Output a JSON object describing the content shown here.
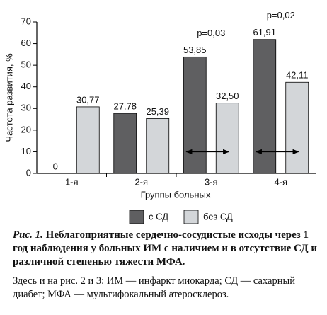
{
  "chart_data": {
    "type": "bar",
    "x_label": "Группы больных",
    "y_label": "Частота развития, %",
    "categories": [
      "1-я",
      "2-я",
      "3-я",
      "4-я"
    ],
    "series": [
      {
        "name": "с СД",
        "color": "#5f5f61",
        "values": [
          0,
          27.78,
          53.85,
          61.91
        ],
        "value_labels": [
          "0",
          "27,78",
          "53,85",
          "61,91"
        ]
      },
      {
        "name": "без СД",
        "color": "#d3d6d9",
        "values": [
          30.77,
          25.39,
          32.5,
          42.11
        ],
        "value_labels": [
          "30,77",
          "25,39",
          "32,50",
          "42,11"
        ]
      }
    ],
    "p_values": [
      null,
      null,
      "p=0,03",
      "p=0,02"
    ],
    "ylim": [
      0,
      70
    ],
    "yticks": [
      0,
      10,
      20,
      30,
      40,
      50,
      60,
      70
    ]
  },
  "caption": {
    "label": "Рис. 1.",
    "title": "Неблагоприятные сердечно-сосудистые исходы через 1 год наблюдения у больных ИМ с наличием и в отсутствие СД и различной степенью тяжести МФА.",
    "note": "Здесь и на рис. 2 и 3: ИМ — инфаркт миокарда; СД — сахарный диабет; МФА — мультифокальный атеросклероз."
  }
}
